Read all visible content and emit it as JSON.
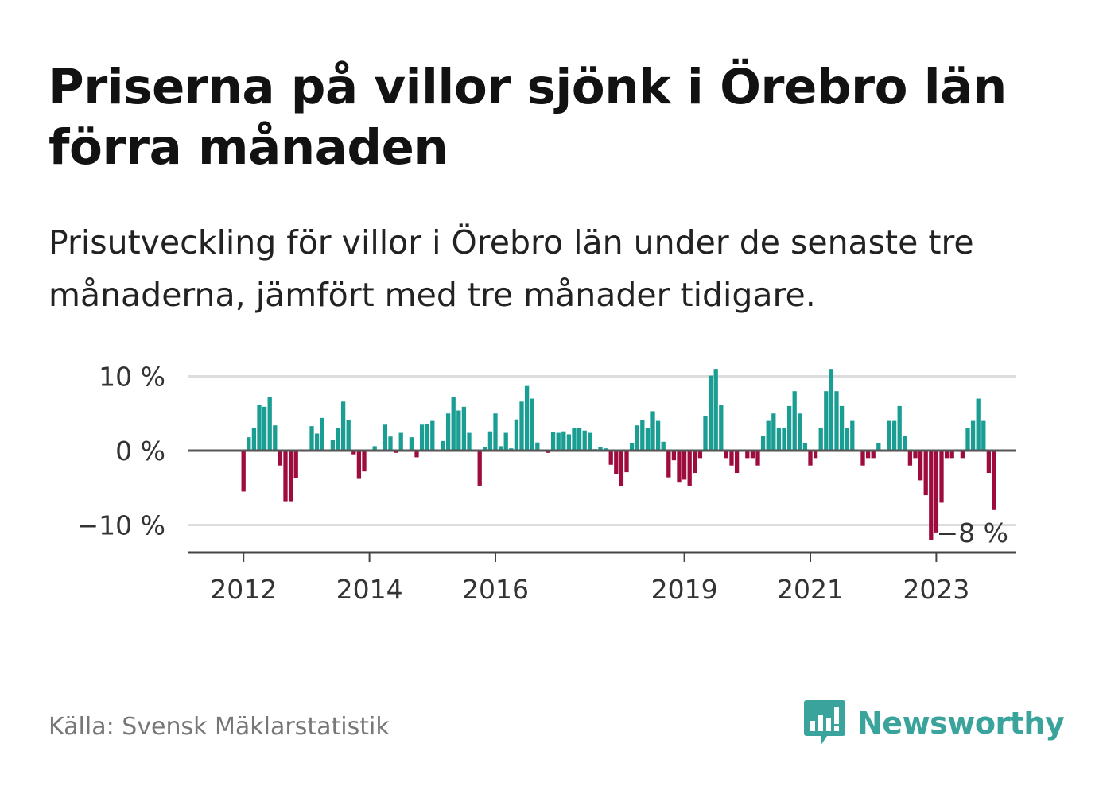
{
  "header": {
    "title": "Priserna på villor sjönk i Örebro län förra månaden",
    "subtitle": "Prisutveckling för villor i Örebro län under de senaste tre månaderna, jämfört med tre månader tidigare."
  },
  "footer": {
    "source": "Källa: Svensk Mäklarstatistik",
    "brand": "Newsworthy",
    "brand_icon": "bar-chart-logo-icon"
  },
  "colors": {
    "positive": "#1a9e94",
    "negative": "#9e0c3d",
    "brand": "#3aa39b"
  },
  "chart_data": {
    "type": "bar",
    "title": "",
    "xlabel": "",
    "ylabel": "",
    "ylim": [
      -14,
      12
    ],
    "yticks": [
      10,
      0,
      -10
    ],
    "ytick_labels": [
      "10 %",
      "0 %",
      "−10 %"
    ],
    "grid": true,
    "xticks": [
      {
        "label": "2012",
        "month": "2012-01"
      },
      {
        "label": "2014",
        "month": "2014-01"
      },
      {
        "label": "2016",
        "month": "2016-01"
      },
      {
        "label": "2019",
        "month": "2019-01"
      },
      {
        "label": "2021",
        "month": "2021-01"
      },
      {
        "label": "2023",
        "month": "2023-01"
      }
    ],
    "end_label": "−8 %",
    "series": [
      {
        "start_month": "2011-06",
        "values": [
          0,
          0,
          0,
          0,
          0,
          0,
          0,
          -5.5,
          1.8,
          3.1,
          6.2,
          5.9,
          7.2,
          3.4,
          -2.0,
          -6.8,
          -6.8,
          -3.7,
          0,
          0,
          3.3,
          2.3,
          4.4,
          0,
          1.5,
          3.1,
          6.6,
          4.1,
          -0.5,
          -3.8,
          -2.8,
          0,
          0.6,
          0,
          3.5,
          1.9,
          -0.3,
          2.4,
          0,
          1.8,
          -0.9,
          3.5,
          3.6,
          4.0,
          0,
          1.3,
          5.0,
          7.2,
          5.4,
          5.9,
          2.4,
          0,
          -4.7,
          0.5,
          2.6,
          5.0,
          0.6,
          2.4,
          0.3,
          4.2,
          6.6,
          8.7,
          7.0,
          1.1,
          0,
          -0.3,
          2.5,
          2.4,
          2.6,
          2.2,
          3.0,
          3.1,
          2.7,
          2.4,
          0.2,
          0.5,
          0.3,
          -1.9,
          -3.1,
          -4.8,
          -2.9,
          1.0,
          3.4,
          4.1,
          3.1,
          5.3,
          4.0,
          1.2,
          -3.6,
          -1.3,
          -4.3,
          -3.9,
          -4.7,
          -3.0,
          -1.0,
          4.7,
          10.1,
          11.0,
          6.2,
          -1.0,
          -2.0,
          -3.0,
          0,
          -1.0,
          -1.0,
          -2.0,
          2.0,
          4.0,
          5.0,
          3.0,
          3.0,
          6.0,
          8.0,
          5.0,
          1.0,
          -2.0,
          -1.0,
          3.0,
          8.0,
          11.0,
          8.0,
          6.0,
          3.0,
          4.0,
          0,
          -2.0,
          -1.0,
          -1.0,
          1.0,
          0,
          4.0,
          4.0,
          6.0,
          2.0,
          -2.0,
          -1.0,
          -4.0,
          -6.0,
          -12.0,
          -11.0,
          -7.0,
          -1.0,
          -1.0,
          0,
          -1.0,
          3.0,
          4.0,
          7.0,
          4.0,
          -3.0,
          -8.0
        ]
      }
    ]
  }
}
